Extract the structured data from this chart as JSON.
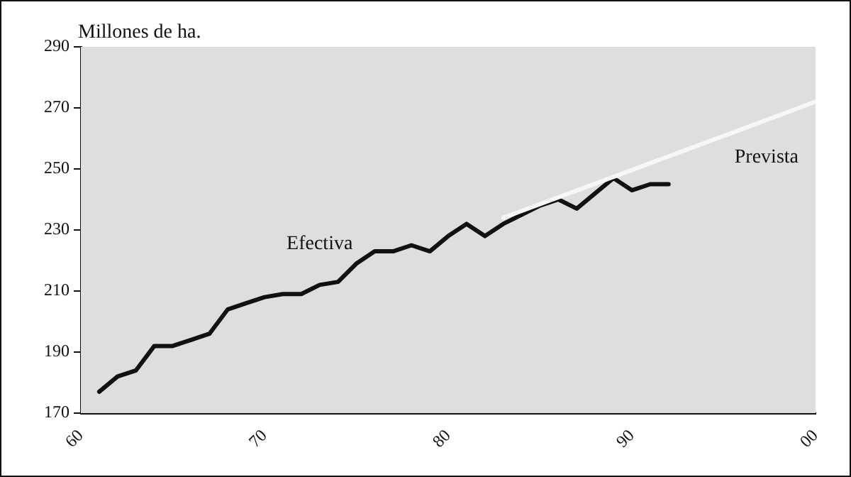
{
  "chart_data": {
    "type": "line",
    "ylabel": "Millones de ha.",
    "xlim": [
      1960,
      2000
    ],
    "xticks": [
      {
        "value": 1960,
        "label": "60"
      },
      {
        "value": 1970,
        "label": "70"
      },
      {
        "value": 1980,
        "label": "80"
      },
      {
        "value": 1990,
        "label": "90"
      },
      {
        "value": 2000,
        "label": "00"
      }
    ],
    "ylim": [
      170,
      290
    ],
    "yticks": [
      170,
      190,
      210,
      230,
      250,
      270,
      290
    ],
    "grid": false,
    "legend": false,
    "marker": "none",
    "line_style": "solid",
    "series": [
      {
        "name": "Prevista",
        "color": "#f7f7f7",
        "x": [
          1983,
          2000
        ],
        "values": [
          234,
          272
        ]
      },
      {
        "name": "Efectiva",
        "color": "#111111",
        "x": [
          1961,
          1962,
          1963,
          1964,
          1965,
          1966,
          1967,
          1968,
          1969,
          1970,
          1971,
          1972,
          1973,
          1974,
          1975,
          1976,
          1977,
          1978,
          1979,
          1980,
          1981,
          1982,
          1983,
          1984,
          1985,
          1986,
          1987,
          1988,
          1989,
          1990,
          1991,
          1992
        ],
        "values": [
          177,
          182,
          184,
          192,
          192,
          194,
          196,
          204,
          206,
          208,
          209,
          209,
          212,
          213,
          219,
          223,
          223,
          225,
          223,
          228,
          232,
          228,
          232,
          235,
          238,
          240,
          237,
          242,
          247,
          243,
          245,
          245
        ]
      }
    ]
  }
}
